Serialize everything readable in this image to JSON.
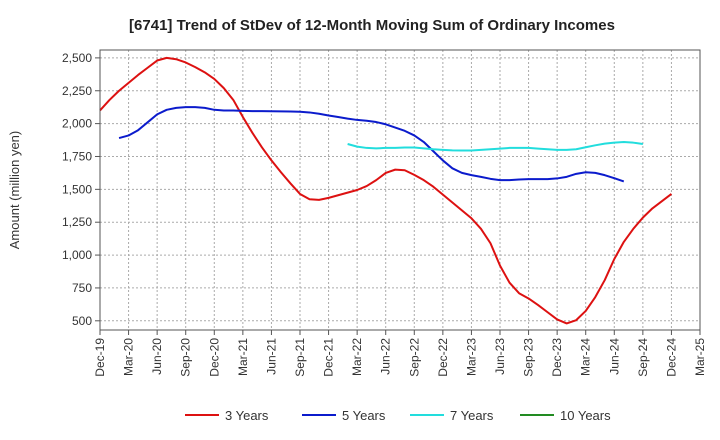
{
  "chart_data": {
    "type": "line",
    "title": "[6741]  Trend of StDev of 12-Month Moving Sum of Ordinary Incomes",
    "xlabel": "",
    "ylabel": "Amount (million yen)",
    "x_ticks": [
      "Dec-19",
      "Mar-20",
      "Jun-20",
      "Sep-20",
      "Dec-20",
      "Mar-21",
      "Jun-21",
      "Sep-21",
      "Dec-21",
      "Mar-22",
      "Jun-22",
      "Sep-22",
      "Dec-22",
      "Mar-23",
      "Jun-23",
      "Sep-23",
      "Dec-23",
      "Mar-24",
      "Jun-24",
      "Sep-24",
      "Dec-24",
      "Mar-25"
    ],
    "y_ticks": [
      "500",
      "750",
      "1,000",
      "1,250",
      "1,500",
      "1,750",
      "2,000",
      "2,250",
      "2,500"
    ],
    "ylim": [
      430,
      2560
    ],
    "grid": true,
    "legend_position": "bottom",
    "series": [
      {
        "name": "3 Years",
        "color": "#dd1111",
        "start_index": 0,
        "values": [
          2100,
          2180,
          2250,
          2310,
          2370,
          2425,
          2480,
          2500,
          2490,
          2465,
          2430,
          2390,
          2340,
          2270,
          2180,
          2050,
          1930,
          1820,
          1720,
          1630,
          1545,
          1465,
          1425,
          1420,
          1435,
          1455,
          1475,
          1495,
          1525,
          1570,
          1625,
          1650,
          1645,
          1610,
          1570,
          1520,
          1460,
          1400,
          1340,
          1280,
          1200,
          1090,
          920,
          790,
          710,
          670,
          620,
          565,
          510,
          480,
          505,
          575,
          680,
          810,
          970,
          1100,
          1200,
          1285,
          1355,
          1410,
          1465
        ]
      },
      {
        "name": "5 Years",
        "color": "#0b1bcc",
        "start_index": 2,
        "values": [
          1890,
          1910,
          1950,
          2010,
          2070,
          2105,
          2120,
          2125,
          2125,
          2120,
          2105,
          2100,
          2100,
          2097,
          2095,
          2095,
          2094,
          2093,
          2092,
          2090,
          2085,
          2075,
          2062,
          2050,
          2038,
          2028,
          2022,
          2012,
          1995,
          1970,
          1945,
          1910,
          1860,
          1790,
          1720,
          1660,
          1625,
          1608,
          1595,
          1580,
          1570,
          1570,
          1575,
          1578,
          1578,
          1578,
          1583,
          1595,
          1618,
          1630,
          1625,
          1608,
          1585,
          1560
        ]
      },
      {
        "name": "7 Years",
        "color": "#22dddd",
        "start_index": 26,
        "values": [
          1845,
          1825,
          1815,
          1812,
          1815,
          1815,
          1818,
          1818,
          1812,
          1805,
          1800,
          1796,
          1795,
          1795,
          1800,
          1805,
          1810,
          1815,
          1815,
          1815,
          1810,
          1805,
          1800,
          1800,
          1805,
          1820,
          1835,
          1848,
          1855,
          1860,
          1855,
          1845
        ]
      },
      {
        "name": "10 Years",
        "color": "#228b22",
        "start_index": 0,
        "values": []
      }
    ]
  }
}
